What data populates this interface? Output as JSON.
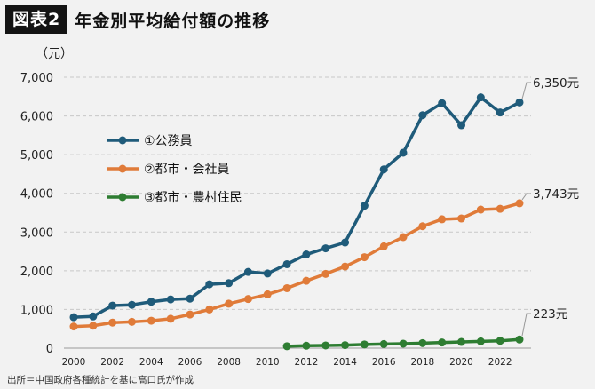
{
  "header": {
    "badge": "図表2",
    "title": "年金別平均給付額の推移"
  },
  "source": "出所＝中国政府各種統計を基に高口氏が作成",
  "chart_data": {
    "type": "line",
    "yunit": "（元）",
    "ylim": [
      0,
      7000
    ],
    "yticks": [
      0,
      1000,
      2000,
      3000,
      4000,
      5000,
      6000,
      7000
    ],
    "ytick_labels": [
      "0",
      "1,000",
      "2,000",
      "3,000",
      "4,000",
      "5,000",
      "6,000",
      "7,000"
    ],
    "xlim": [
      2000,
      2023
    ],
    "xticks": [
      2000,
      2002,
      2004,
      2006,
      2008,
      2010,
      2012,
      2014,
      2016,
      2018,
      2020,
      2022
    ],
    "xtick_labels": [
      "2000",
      "2002",
      "2004",
      "2006",
      "2008",
      "2010",
      "2012",
      "2014",
      "2016",
      "2018",
      "2020",
      "2022"
    ],
    "grid": "horizontal dashed",
    "legend_position": "upper-left",
    "series": [
      {
        "name": "①公務員",
        "color": "#1f5b7a",
        "x": [
          2000,
          2001,
          2002,
          2003,
          2004,
          2005,
          2006,
          2007,
          2008,
          2009,
          2010,
          2011,
          2012,
          2013,
          2014,
          2015,
          2016,
          2017,
          2018,
          2019,
          2020,
          2021,
          2022,
          2023
        ],
        "values": [
          800,
          820,
          1100,
          1120,
          1200,
          1260,
          1280,
          1650,
          1680,
          1970,
          1930,
          2170,
          2420,
          2580,
          2730,
          3680,
          4620,
          5050,
          6020,
          6330,
          5760,
          6480,
          6090,
          6350
        ],
        "end_label": "6,350元"
      },
      {
        "name": "②都市・会社員",
        "color": "#e07b39",
        "x": [
          2000,
          2001,
          2002,
          2003,
          2004,
          2005,
          2006,
          2007,
          2008,
          2009,
          2010,
          2011,
          2012,
          2013,
          2014,
          2015,
          2016,
          2017,
          2018,
          2019,
          2020,
          2021,
          2022,
          2023
        ],
        "values": [
          560,
          580,
          660,
          680,
          710,
          760,
          870,
          1000,
          1150,
          1270,
          1390,
          1550,
          1740,
          1920,
          2110,
          2350,
          2630,
          2870,
          3150,
          3330,
          3350,
          3580,
          3600,
          3743
        ],
        "end_label": "3,743元"
      },
      {
        "name": "③都市・農村住民",
        "color": "#2e7d32",
        "x": [
          2011,
          2012,
          2013,
          2014,
          2015,
          2016,
          2017,
          2018,
          2019,
          2020,
          2021,
          2022,
          2023
        ],
        "values": [
          50,
          62,
          70,
          78,
          95,
          105,
          115,
          130,
          145,
          160,
          175,
          190,
          223
        ],
        "end_label": "223元"
      }
    ]
  }
}
